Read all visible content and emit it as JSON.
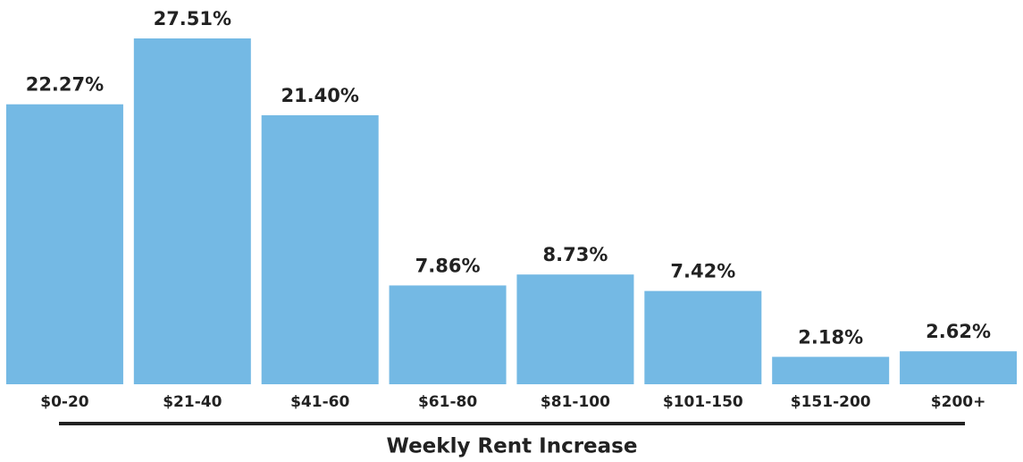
{
  "chart_data": {
    "type": "bar",
    "x_label": "Weekly Rent Increase",
    "categories": [
      "$0-20",
      "$21-40",
      "$41-60",
      "$61-80",
      "$81-100",
      "$101-150",
      "$151-200",
      "$200+"
    ],
    "values": [
      22.27,
      27.51,
      21.4,
      7.86,
      8.73,
      7.42,
      2.18,
      2.62
    ],
    "value_labels": [
      "22.27%",
      "27.51%",
      "21.40%",
      "7.86%",
      "8.73%",
      "7.42%",
      "2.18%",
      "2.62%"
    ],
    "color": "#74b9e4"
  }
}
